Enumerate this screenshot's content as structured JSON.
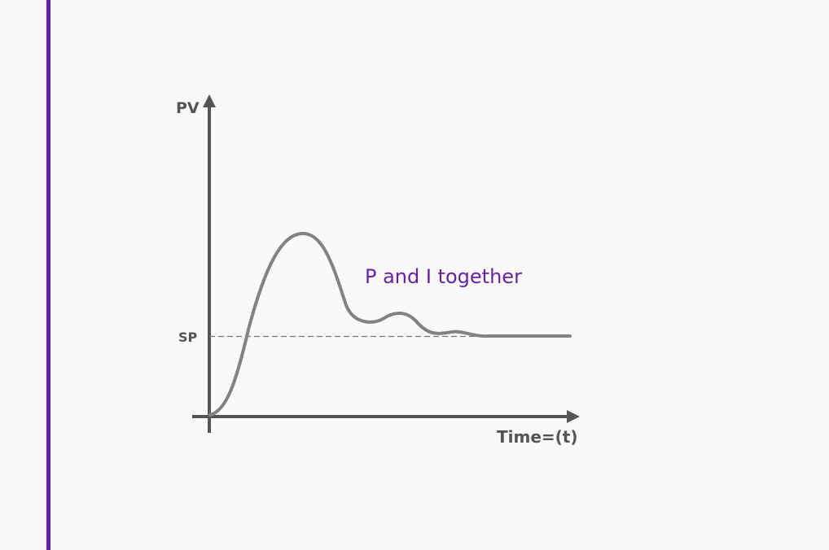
{
  "colors": {
    "accent": "#6a1fa7",
    "axis": "#555555",
    "curve": "#828282",
    "text": "#555555",
    "setpoint_line": "#777777",
    "background": "#f9f9f9"
  },
  "labels": {
    "y_axis": "PV",
    "x_axis": "Time=(t)",
    "setpoint": "SP",
    "annotation": "P and I together"
  }
}
